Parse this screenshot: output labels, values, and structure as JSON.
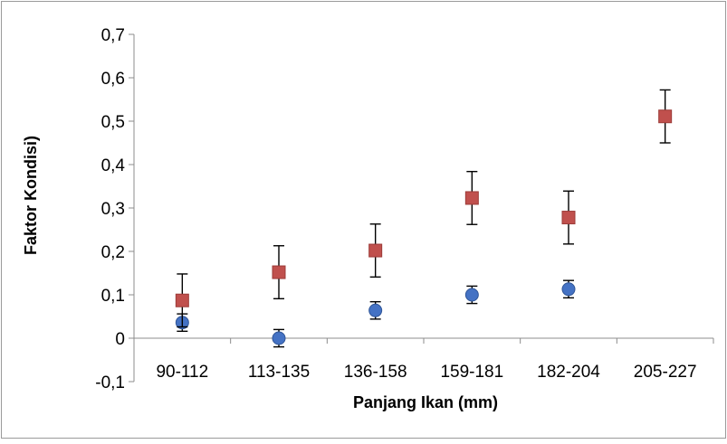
{
  "chart_data": {
    "type": "scatter",
    "title": "",
    "xlabel": "Panjang Ikan (mm)",
    "ylabel": "Faktor Kondisi)",
    "categories": [
      "90-112",
      "113-135",
      "136-158",
      "159-181",
      "182-204",
      "205-227"
    ],
    "ylim": [
      -0.1,
      0.7
    ],
    "yticks": [
      -0.1,
      0,
      0.1,
      0.2,
      0.3,
      0.4,
      0.5,
      0.6,
      0.7
    ],
    "ytick_labels": [
      "-0,1",
      "0",
      "0,1",
      "0,2",
      "0,3",
      "0,4",
      "0,5",
      "0,6",
      "0,7"
    ],
    "grid": false,
    "legend": "none",
    "series": [
      {
        "marker": "circle",
        "color": "#4472c4",
        "values": [
          0.036,
          0.0,
          0.064,
          0.1,
          0.113,
          null
        ],
        "error": [
          0.02,
          0.02,
          0.02,
          0.02,
          0.02,
          null
        ]
      },
      {
        "marker": "square",
        "color": "#c0504d",
        "values": [
          0.087,
          0.152,
          0.202,
          0.323,
          0.278,
          0.511
        ],
        "error": [
          0.061,
          0.061,
          0.061,
          0.061,
          0.061,
          0.061
        ]
      }
    ]
  }
}
